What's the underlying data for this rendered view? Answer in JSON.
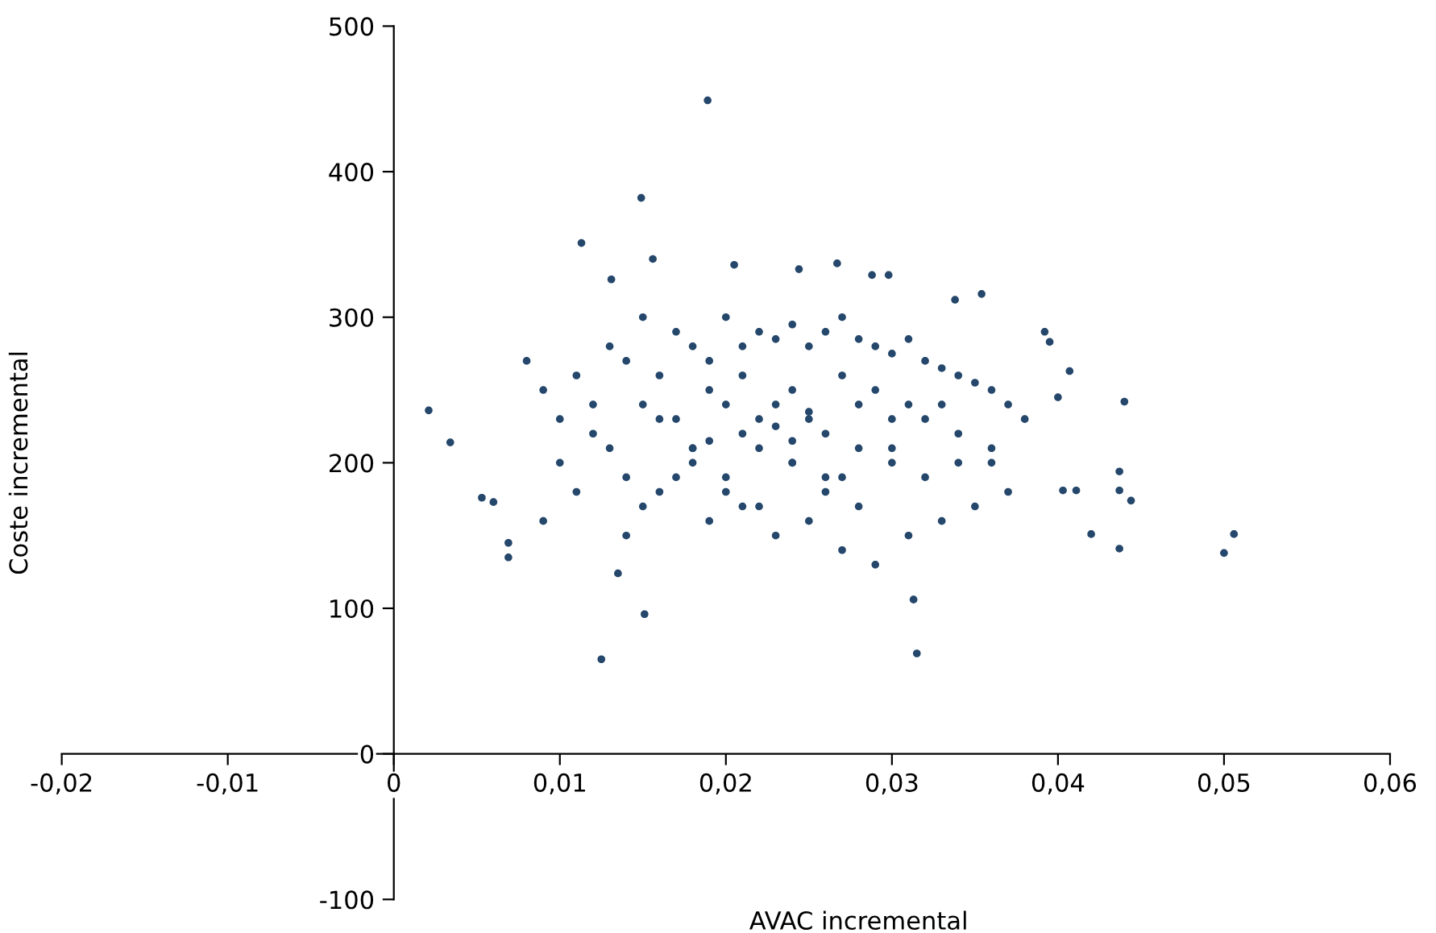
{
  "chart_data": {
    "type": "scatter",
    "xlabel": "AVAC incremental",
    "ylabel": "Coste incremental",
    "xlim": [
      -0.02,
      0.06
    ],
    "ylim": [
      -100,
      500
    ],
    "xticks": [
      {
        "value": -0.02,
        "label": "-0,02"
      },
      {
        "value": -0.01,
        "label": "-0,01"
      },
      {
        "value": 0,
        "label": "0"
      },
      {
        "value": 0.01,
        "label": "0,01"
      },
      {
        "value": 0.02,
        "label": "0,02"
      },
      {
        "value": 0.03,
        "label": "0,03"
      },
      {
        "value": 0.04,
        "label": "0,04"
      },
      {
        "value": 0.05,
        "label": "0,05"
      },
      {
        "value": 0.06,
        "label": "0,06"
      }
    ],
    "yticks": [
      -100,
      0,
      100,
      200,
      300,
      400,
      500
    ],
    "grid": false,
    "marker": "circle",
    "series": [
      {
        "color": "#24476b",
        "x": [
          0.0189,
          0.0149,
          0.0113,
          0.0021,
          0.0125,
          0.0151,
          0.0069,
          0.0069,
          0.0034,
          0.0053,
          0.006,
          0.0135,
          0.0315,
          0.0313,
          0.05,
          0.0506,
          0.0437,
          0.042,
          0.0437,
          0.0437,
          0.0444,
          0.044,
          0.0403,
          0.0411,
          0.0407,
          0.04,
          0.0392,
          0.0395,
          0.0354,
          0.0338,
          0.0156,
          0.0205,
          0.0244,
          0.0267,
          0.0131,
          0.0288,
          0.0298,
          0.008,
          0.009,
          0.01,
          0.011,
          0.012,
          0.013,
          0.014,
          0.015,
          0.016,
          0.017,
          0.018,
          0.019,
          0.02,
          0.021,
          0.022,
          0.023,
          0.024,
          0.025,
          0.026,
          0.027,
          0.028,
          0.029,
          0.03,
          0.031,
          0.032,
          0.033,
          0.034,
          0.035,
          0.036,
          0.037,
          0.038,
          0.009,
          0.011,
          0.013,
          0.015,
          0.017,
          0.019,
          0.021,
          0.023,
          0.025,
          0.027,
          0.029,
          0.031,
          0.033,
          0.035,
          0.037,
          0.01,
          0.012,
          0.014,
          0.016,
          0.018,
          0.02,
          0.022,
          0.024,
          0.026,
          0.028,
          0.03,
          0.032,
          0.034,
          0.036,
          0.014,
          0.016,
          0.018,
          0.02,
          0.022,
          0.024,
          0.026,
          0.028,
          0.03,
          0.032,
          0.034,
          0.017,
          0.019,
          0.021,
          0.023,
          0.025,
          0.027,
          0.029,
          0.031,
          0.015,
          0.018,
          0.021,
          0.024,
          0.027,
          0.03,
          0.033,
          0.036,
          0.02,
          0.022,
          0.024,
          0.026,
          0.028,
          0.025,
          0.023,
          0.019
        ],
        "values": [
          449,
          382,
          351,
          236,
          65,
          96,
          135,
          145,
          214,
          176,
          173,
          124,
          69,
          106,
          138,
          151,
          141,
          151,
          194,
          181,
          174,
          242,
          181,
          181,
          263,
          245,
          290,
          283,
          316,
          312,
          340,
          336,
          333,
          337,
          326,
          329,
          329,
          270,
          250,
          230,
          260,
          240,
          280,
          270,
          300,
          260,
          290,
          280,
          270,
          300,
          280,
          290,
          285,
          295,
          280,
          290,
          300,
          285,
          280,
          275,
          285,
          270,
          265,
          260,
          255,
          250,
          240,
          230,
          160,
          180,
          210,
          170,
          190,
          160,
          170,
          150,
          160,
          140,
          130,
          150,
          160,
          170,
          180,
          200,
          220,
          190,
          230,
          210,
          240,
          230,
          250,
          220,
          240,
          210,
          230,
          200,
          210,
          150,
          180,
          200,
          190,
          210,
          200,
          190,
          210,
          200,
          190,
          220,
          230,
          250,
          260,
          240,
          230,
          260,
          250,
          240,
          240,
          210,
          220,
          200,
          190,
          230,
          240,
          200,
          180,
          170,
          215,
          180,
          170,
          235,
          225,
          215
        ]
      }
    ]
  }
}
